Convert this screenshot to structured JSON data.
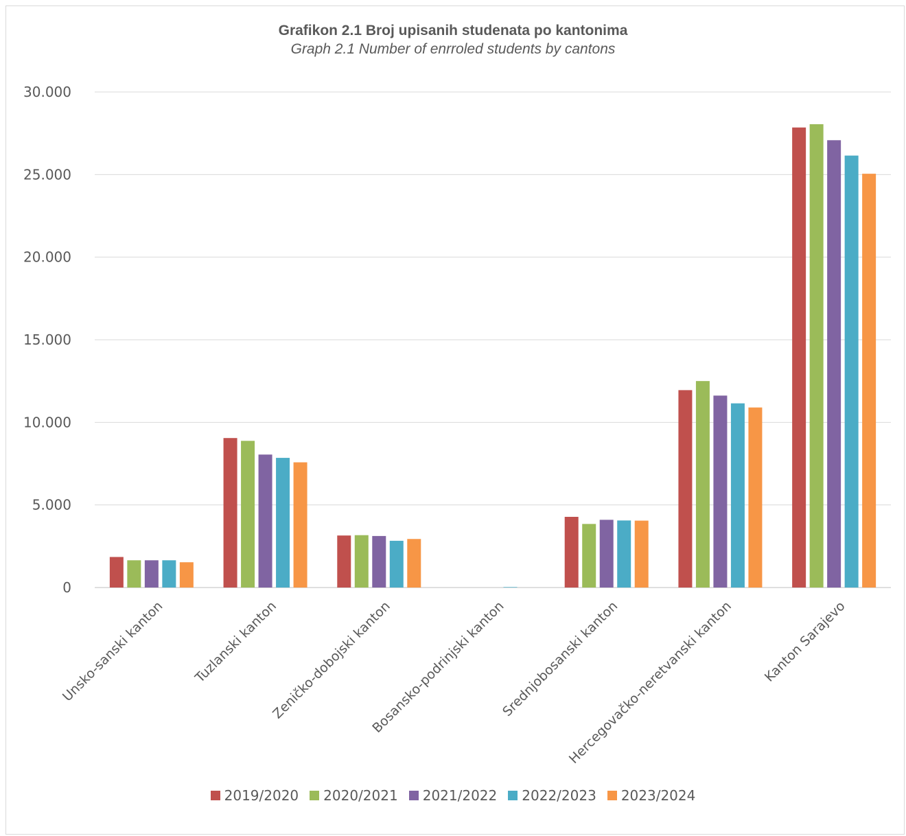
{
  "chart_data": {
    "type": "bar",
    "title": "Grafikon 2.1 Broj upisanih studenata po kantonima",
    "subtitle": "Graph 2.1 Number of enrroled students by cantons",
    "xlabel": "",
    "ylabel": "",
    "ylim": [
      0,
      30000
    ],
    "y_ticks": [
      "0",
      "5.000",
      "10.000",
      "15.000",
      "20.000",
      "25.000",
      "30.000"
    ],
    "grid": true,
    "legend_position": "bottom",
    "categories": [
      "Unsko-sanski kanton",
      "Tuzlanski kanton",
      "Zeničko-dobojski kanton",
      "Bosansko-podrinjski kanton",
      "Srednjobosanski kanton",
      "Hercegovačko-neretvanski kanton",
      "Kanton Sarajevo"
    ],
    "series": [
      {
        "name": "2019/2020",
        "color": "#c0504d",
        "values": [
          1850,
          9050,
          3150,
          0,
          4280,
          11950,
          27850
        ]
      },
      {
        "name": "2020/2021",
        "color": "#9bbb59",
        "values": [
          1650,
          8880,
          3170,
          0,
          3850,
          12500,
          28050
        ]
      },
      {
        "name": "2021/2022",
        "color": "#8064a2",
        "values": [
          1650,
          8050,
          3120,
          0,
          4100,
          11620,
          27080
        ]
      },
      {
        "name": "2022/2023",
        "color": "#4bacc6",
        "values": [
          1650,
          7850,
          2830,
          30,
          4060,
          11150,
          26150
        ]
      },
      {
        "name": "2023/2024",
        "color": "#f79646",
        "values": [
          1530,
          7580,
          2940,
          0,
          4050,
          10900,
          25050
        ]
      }
    ]
  }
}
